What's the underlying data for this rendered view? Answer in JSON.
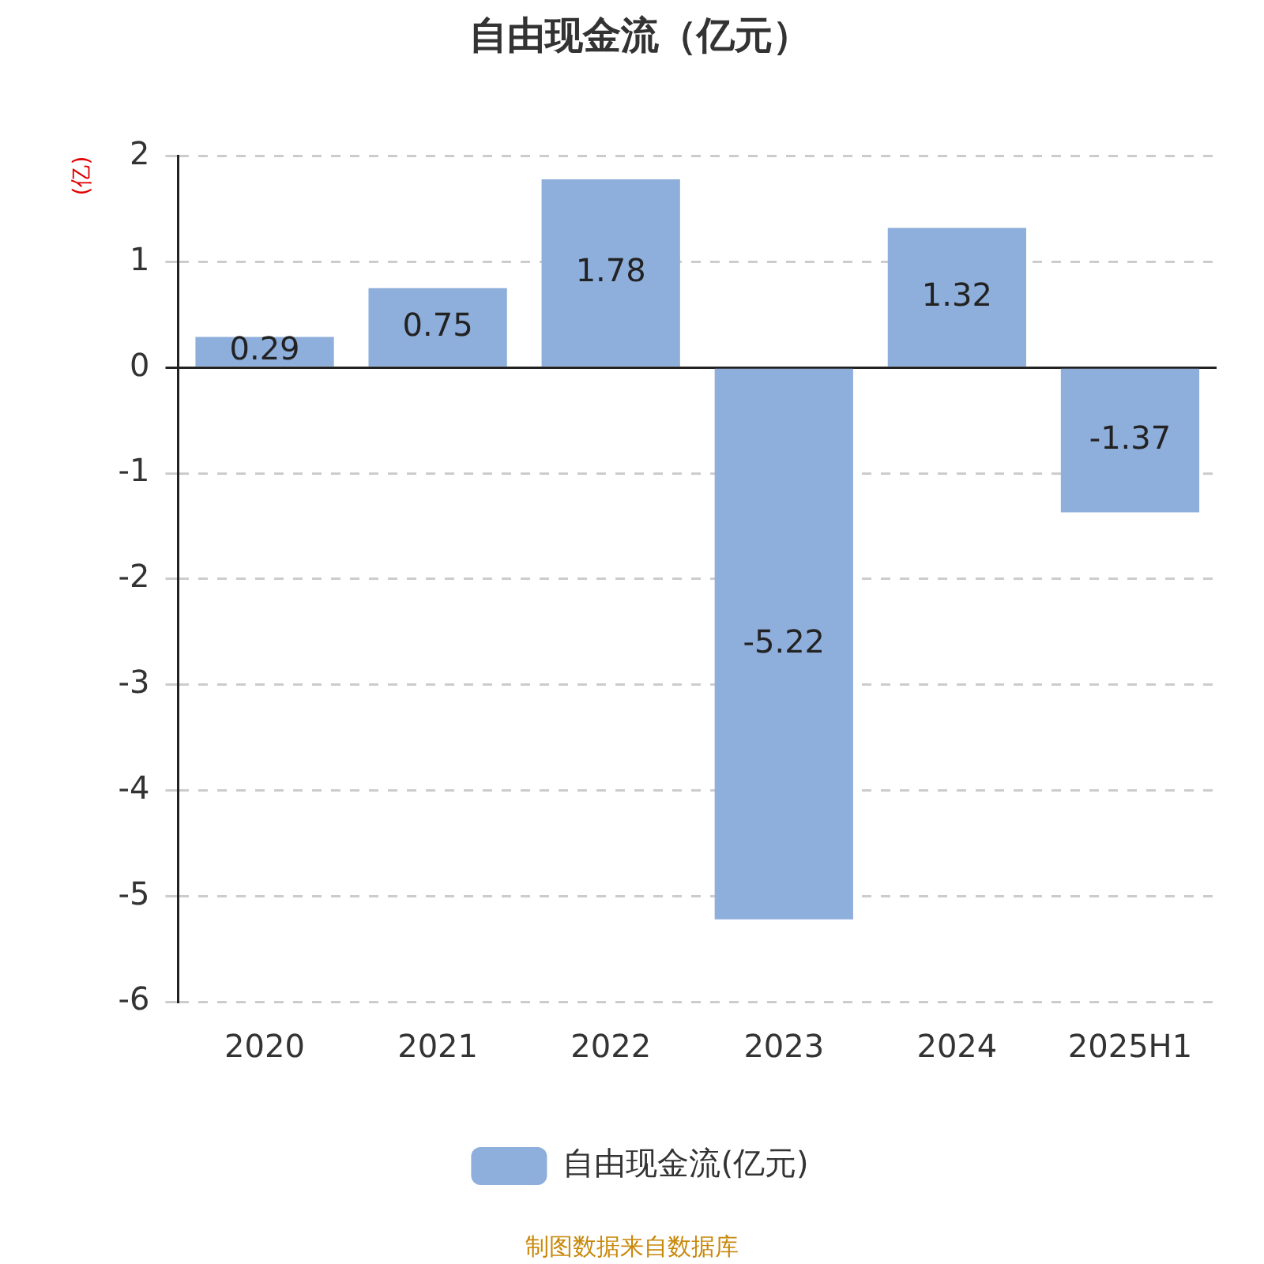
{
  "chart_data": {
    "type": "bar",
    "title": "自由现金流（亿元）",
    "ylabel": "(亿)",
    "categories": [
      "2020",
      "2021",
      "2022",
      "2023",
      "2024",
      "2025H1"
    ],
    "series": [
      {
        "name": "自由现金流(亿元)",
        "color": "#8eaedb",
        "values": [
          0.29,
          0.75,
          1.78,
          -5.22,
          1.32,
          -1.37
        ]
      }
    ],
    "ylim": [
      -6,
      2
    ],
    "yticks": [
      -6,
      -5,
      -4,
      -3,
      -2,
      -1,
      0,
      1,
      2
    ],
    "grid": "y",
    "legend": "bottom",
    "data_labels": true,
    "annotations": [
      "制图数据来自数据库"
    ]
  }
}
